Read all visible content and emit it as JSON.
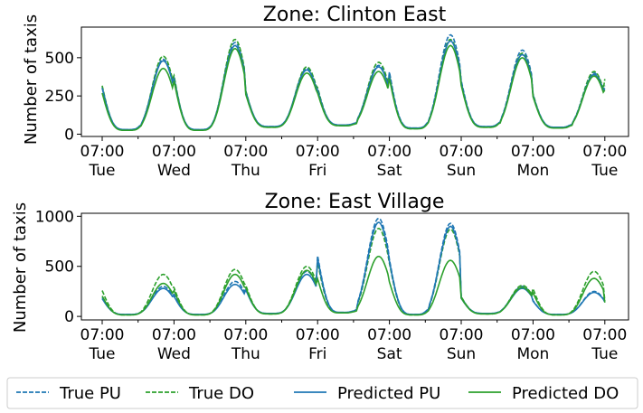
{
  "chart_data": [
    {
      "type": "line",
      "title": "Zone: Clinton East",
      "ylabel": "Number of taxis",
      "xlabel": "",
      "ylim": [
        -15,
        700
      ],
      "yticks": [
        0,
        250,
        500
      ],
      "x_tick_labels": [
        {
          "time": "07:00",
          "day": "Tue"
        },
        {
          "time": "07:00",
          "day": "Wed"
        },
        {
          "time": "07:00",
          "day": "Thu"
        },
        {
          "time": "07:00",
          "day": "Fri"
        },
        {
          "time": "07:00",
          "day": "Sat"
        },
        {
          "time": "07:00",
          "day": "Sun"
        },
        {
          "time": "07:00",
          "day": "Mon"
        },
        {
          "time": "07:00",
          "day": "Tue"
        }
      ],
      "peaks": {
        "pu": [
          490,
          600,
          430,
          450,
          650,
          550,
          400,
          530
        ],
        "do": [
          510,
          620,
          440,
          470,
          620,
          530,
          410,
          600
        ],
        "pred_pu": [
          480,
          580,
          420,
          440,
          610,
          520,
          390,
          500
        ],
        "pred_do": [
          430,
          560,
          400,
          410,
          580,
          500,
          380,
          480
        ]
      },
      "troughs": {
        "pu": [
          30,
          30,
          50,
          60,
          40,
          50,
          45,
          30
        ],
        "do": [
          25,
          25,
          45,
          55,
          35,
          45,
          40,
          25
        ]
      },
      "series": [
        {
          "name": "True PU",
          "color": "#1f77b4",
          "dash": "dashed",
          "key": "pu"
        },
        {
          "name": "True DO",
          "color": "#2ca02c",
          "dash": "dashed",
          "key": "do"
        },
        {
          "name": "Predicted PU",
          "color": "#1f77b4",
          "dash": "solid",
          "key": "pred_pu"
        },
        {
          "name": "Predicted DO",
          "color": "#2ca02c",
          "dash": "solid",
          "key": "pred_do"
        }
      ]
    },
    {
      "type": "line",
      "title": "Zone: East Village",
      "ylabel": "Number of taxis",
      "xlabel": "",
      "ylim": [
        -35,
        1030
      ],
      "yticks": [
        0,
        500,
        1000
      ],
      "x_tick_labels": [
        {
          "time": "07:00",
          "day": "Tue"
        },
        {
          "time": "07:00",
          "day": "Wed"
        },
        {
          "time": "07:00",
          "day": "Thu"
        },
        {
          "time": "07:00",
          "day": "Fri"
        },
        {
          "time": "07:00",
          "day": "Sat"
        },
        {
          "time": "07:00",
          "day": "Sun"
        },
        {
          "time": "07:00",
          "day": "Mon"
        },
        {
          "time": "07:00",
          "day": "Tue"
        }
      ],
      "peaks": {
        "pu": [
          300,
          350,
          450,
          980,
          930,
          300,
          250,
          250
        ],
        "do": [
          420,
          470,
          500,
          880,
          870,
          310,
          450,
          260
        ],
        "pred_pu": [
          280,
          320,
          420,
          940,
          900,
          280,
          240,
          240
        ],
        "pred_do": [
          330,
          420,
          460,
          600,
          560,
          290,
          380,
          230
        ]
      },
      "troughs": {
        "pu": [
          20,
          20,
          30,
          40,
          20,
          30,
          20,
          30
        ],
        "do": [
          15,
          15,
          25,
          35,
          15,
          25,
          15,
          25
        ]
      },
      "series": [
        {
          "name": "True PU",
          "color": "#1f77b4",
          "dash": "dashed",
          "key": "pu"
        },
        {
          "name": "True DO",
          "color": "#2ca02c",
          "dash": "dashed",
          "key": "do"
        },
        {
          "name": "Predicted PU",
          "color": "#1f77b4",
          "dash": "solid",
          "key": "pred_pu"
        },
        {
          "name": "Predicted DO",
          "color": "#2ca02c",
          "dash": "solid",
          "key": "pred_do"
        }
      ]
    }
  ],
  "legend": {
    "entries": [
      {
        "label": "True PU",
        "color": "#1f77b4",
        "dash": "dashed"
      },
      {
        "label": "True DO",
        "color": "#2ca02c",
        "dash": "dashed"
      },
      {
        "label": "Predicted PU",
        "color": "#1f77b4",
        "dash": "solid"
      },
      {
        "label": "Predicted DO",
        "color": "#2ca02c",
        "dash": "solid"
      }
    ],
    "placement": "bottom"
  }
}
